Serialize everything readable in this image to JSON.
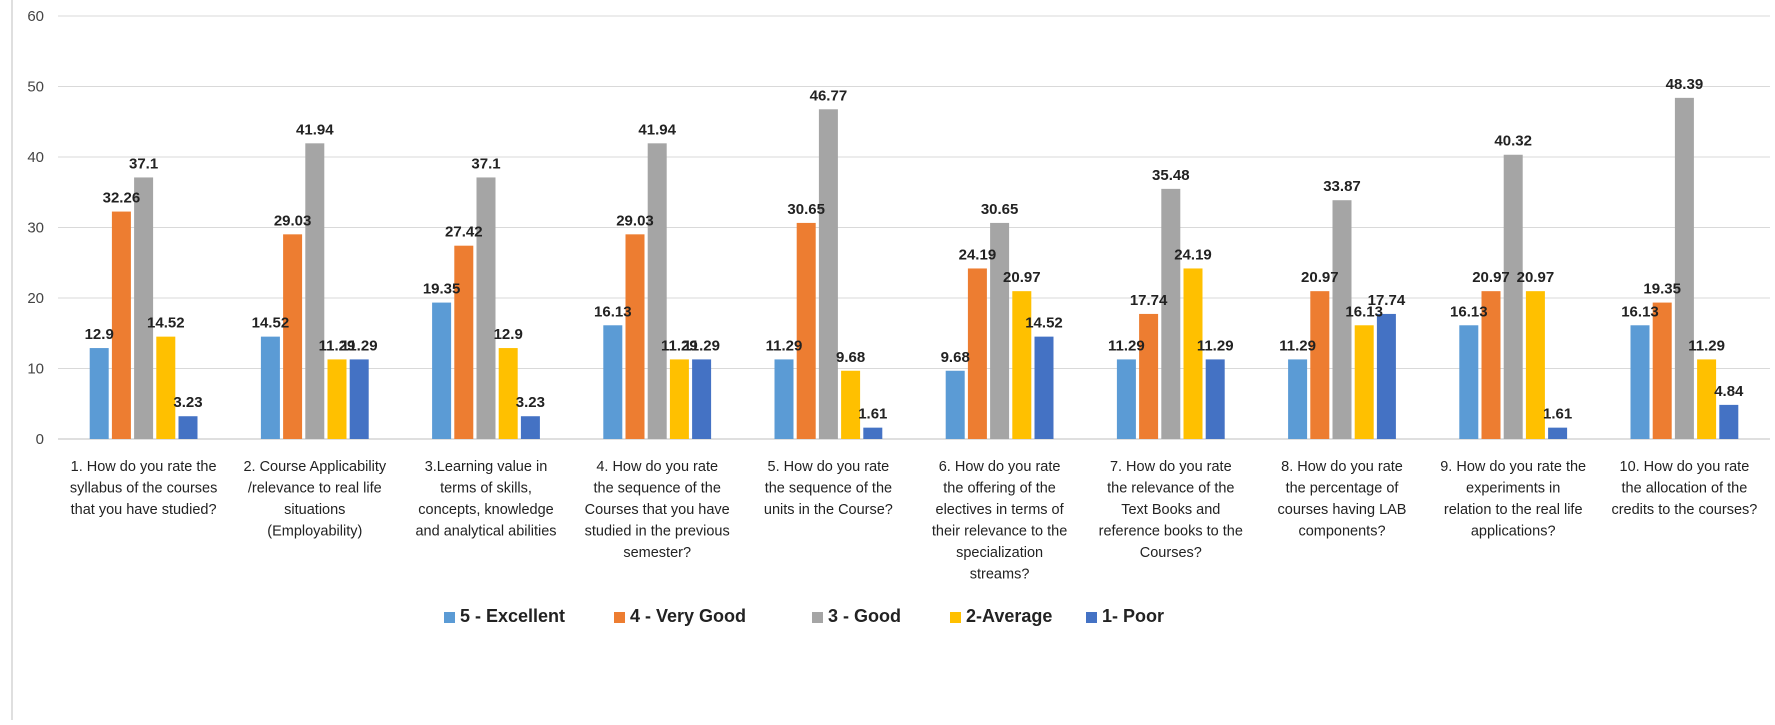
{
  "chart_data": {
    "type": "bar",
    "title": "",
    "xlabel": "",
    "ylabel": "",
    "ylim": [
      0,
      60
    ],
    "yticks": [
      0,
      10,
      20,
      30,
      40,
      50,
      60
    ],
    "grid": true,
    "legend_position": "bottom",
    "categories": [
      [
        "1. How do you rate the",
        "syllabus of the courses",
        "that you have studied?"
      ],
      [
        "2. Course Applicability",
        "/relevance to real life",
        "situations",
        "(Employability)"
      ],
      [
        "3.Learning value in",
        "terms of skills,",
        "concepts, knowledge",
        "and analytical abilities"
      ],
      [
        "4.   How do you rate",
        "the sequence of the",
        "Courses that you have",
        "studied in the previous",
        "semester?"
      ],
      [
        "5.   How do you rate",
        "the sequence of the",
        "units in the Course?"
      ],
      [
        "6.   How do you rate",
        "the offering of the",
        "electives in terms of",
        "their relevance to the",
        "specialization",
        "streams?"
      ],
      [
        "7.   How do you rate",
        "the relevance of the",
        "Text Books and",
        "reference books to the",
        "Courses?"
      ],
      [
        "8.   How do you rate",
        "the percentage of",
        "courses having LAB",
        "components?"
      ],
      [
        "9. How do you rate the",
        "experiments in",
        "relation to the real life",
        "applications?"
      ],
      [
        "10. How do you rate",
        "the allocation of the",
        "credits to the courses?"
      ]
    ],
    "series": [
      {
        "name": "5 - Excellent",
        "color": "#5b9bd5",
        "values": [
          12.9,
          14.52,
          19.35,
          16.13,
          11.29,
          9.68,
          11.29,
          11.29,
          16.13,
          16.13
        ],
        "labels": [
          "12.9",
          "14.52",
          "19.35",
          "16.13",
          "11.29",
          "9.68",
          "11.29",
          "11.29",
          "16.13",
          "16.13"
        ]
      },
      {
        "name": "4 - Very Good",
        "color": "#ed7d31",
        "values": [
          32.26,
          29.03,
          27.42,
          29.03,
          30.65,
          24.19,
          17.74,
          20.97,
          20.97,
          19.35
        ],
        "labels": [
          "32.26",
          "29.03",
          "27.42",
          "29.03",
          "30.65",
          "24.19",
          "17.74",
          "20.97",
          "20.97",
          "19.35"
        ]
      },
      {
        "name": "3 - Good",
        "color": "#a5a5a5",
        "values": [
          37.1,
          41.94,
          37.1,
          41.94,
          46.77,
          30.65,
          35.48,
          33.87,
          40.32,
          48.39
        ],
        "labels": [
          "37.1",
          "41.94",
          "37.1",
          "41.94",
          "46.77",
          "30.65",
          "35.48",
          "33.87",
          "40.32",
          "48.39"
        ]
      },
      {
        "name": "2-Average",
        "color": "#ffc000",
        "values": [
          14.52,
          11.29,
          12.9,
          11.29,
          9.68,
          20.97,
          24.19,
          16.13,
          20.97,
          11.29
        ],
        "labels": [
          "14.52",
          "11.29",
          "12.9",
          "11.29",
          "9.68",
          "20.97",
          "24.19",
          "16.13",
          "20.97",
          "11.29"
        ]
      },
      {
        "name": "1- Poor",
        "color": "#4472c4",
        "values": [
          3.23,
          11.29,
          3.23,
          11.29,
          1.61,
          14.52,
          11.29,
          17.74,
          1.61,
          4.84
        ],
        "labels": [
          "3.23",
          "11.29",
          "3.23",
          "11.29",
          "1.61",
          "14.52",
          "11.29",
          "17.74",
          "1.61",
          "4.84"
        ]
      }
    ]
  }
}
